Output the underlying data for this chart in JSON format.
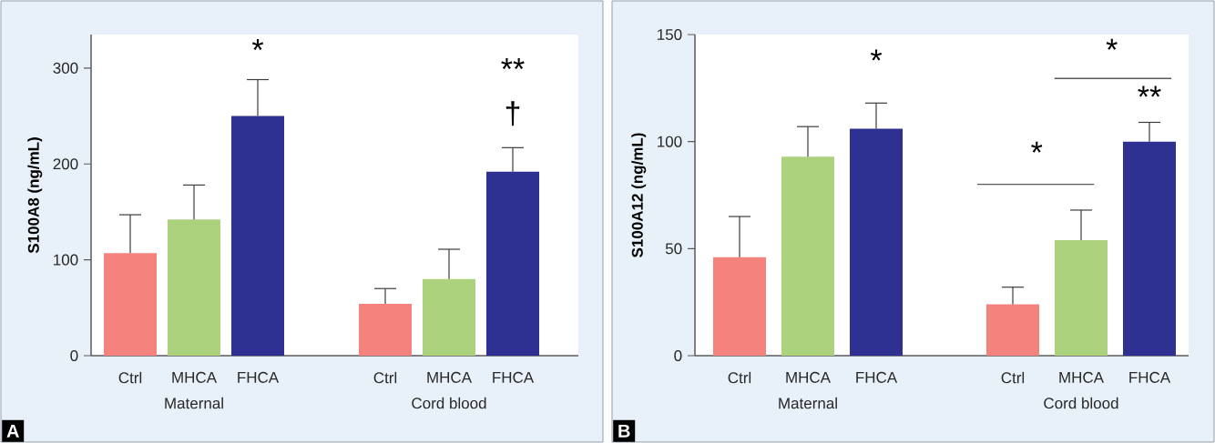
{
  "chart_data": [
    {
      "type": "bar",
      "ylabel": "S100A8 (ng/mL)",
      "categories": [
        "Ctrl",
        "MHCA",
        "FHCA",
        null,
        "Ctrl",
        "MHCA",
        "FHCA"
      ],
      "values": [
        107,
        142,
        250,
        null,
        54,
        80,
        192
      ],
      "colors": [
        "#f4837d",
        "#acd27e",
        "#2e3192",
        null,
        "#f4837d",
        "#acd27e",
        "#2e3192"
      ],
      "errors": [
        [
          107,
          147
        ],
        [
          142,
          178
        ],
        [
          250,
          288
        ],
        null,
        [
          54,
          70
        ],
        [
          80,
          111
        ],
        [
          192,
          217
        ]
      ],
      "ylim": [
        0,
        335
      ],
      "yticks": [
        0,
        100,
        200,
        300
      ],
      "grid": false,
      "annotations": [
        "Maternal",
        "Cord blood",
        "*",
        "**",
        "†",
        "A"
      ]
    },
    {
      "type": "bar",
      "ylabel": "S100A12 (ng/mL)",
      "categories": [
        "Ctrl",
        "MHCA",
        "FHCA",
        null,
        "Ctrl",
        "MHCA",
        "FHCA"
      ],
      "values": [
        46,
        93,
        106,
        null,
        24,
        54,
        100
      ],
      "colors": [
        "#f4837d",
        "#acd27e",
        "#2e3192",
        null,
        "#f4837d",
        "#acd27e",
        "#2e3192"
      ],
      "errors": [
        [
          46,
          65
        ],
        [
          93,
          107
        ],
        [
          106,
          118
        ],
        null,
        [
          24,
          32
        ],
        [
          54,
          68
        ],
        [
          100,
          109
        ]
      ],
      "ylim": [
        0,
        150
      ],
      "yticks": [
        0,
        50,
        100,
        150
      ],
      "grid": false,
      "annotations": [
        "Maternal",
        "Cord blood",
        "*",
        "*",
        "*",
        "**",
        "B"
      ]
    }
  ]
}
